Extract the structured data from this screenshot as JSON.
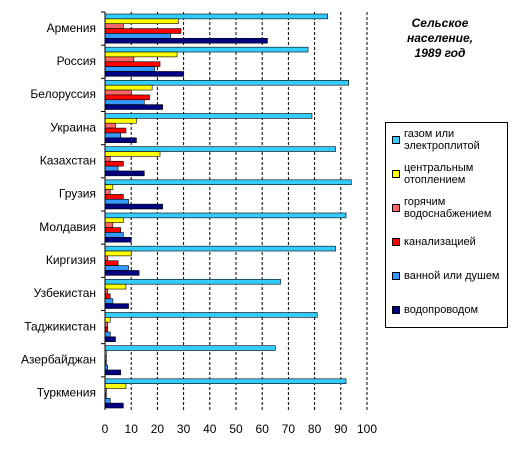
{
  "chart_data": {
    "type": "barh",
    "title_lines": [
      "Сельское",
      "население,",
      "1989 год"
    ],
    "categories": [
      "Армения",
      "Россия",
      "Белоруссия",
      "Украина",
      "Казахстан",
      "Грузия",
      "Молдавия",
      "Киргизия",
      "Узбекистан",
      "Таджикистан",
      "Азербайджан",
      "Туркмения"
    ],
    "series": [
      {
        "name": "газом или электроплитой",
        "color": "#33ccff",
        "values": [
          85,
          77.5,
          93,
          79,
          88,
          94,
          92,
          88,
          67,
          81,
          65,
          92
        ]
      },
      {
        "name": "центральным отоплением",
        "color": "#ffff00",
        "values": [
          28,
          27.5,
          18,
          12,
          21,
          3,
          7,
          10,
          8,
          2,
          0.5,
          8
        ]
      },
      {
        "name": "горячим водоснабжением",
        "color": "#ff6666",
        "values": [
          7,
          11,
          10,
          4,
          2,
          2,
          3,
          1,
          1,
          1,
          0.5,
          0.5
        ]
      },
      {
        "name": "канализацией",
        "color": "#ff0000",
        "values": [
          29,
          21,
          17,
          8,
          7,
          7,
          6,
          5,
          2,
          1,
          0.5,
          0.5
        ]
      },
      {
        "name": "ванной или душем",
        "color": "#3399ff",
        "values": [
          25,
          19,
          15,
          6,
          5,
          9,
          7,
          9,
          3,
          2,
          1,
          2
        ]
      },
      {
        "name": "водопроводом",
        "color": "#000080",
        "values": [
          62,
          30,
          22,
          12,
          15,
          22,
          10,
          13,
          9,
          4,
          6,
          7
        ]
      }
    ],
    "xlim": [
      0,
      100
    ],
    "xticks": [
      0,
      10,
      20,
      30,
      40,
      50,
      60,
      70,
      80,
      90,
      100
    ],
    "grid": true,
    "legend": "right"
  }
}
